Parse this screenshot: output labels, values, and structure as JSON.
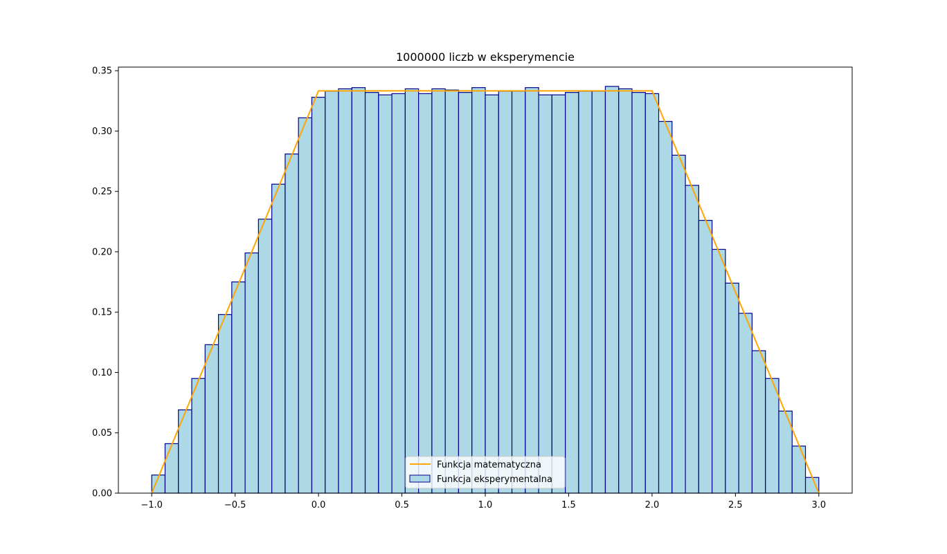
{
  "chart_data": {
    "type": "bar",
    "title": "1000000 liczb w eksperymencie",
    "xlabel": "",
    "ylabel": "",
    "xlim": [
      -1.2,
      3.2
    ],
    "ylim": [
      0,
      0.353
    ],
    "grid": false,
    "legend_position": "bottom-center",
    "x_ticks": [
      "−1.0",
      "−0.5",
      "0.0",
      "0.5",
      "1.0",
      "1.5",
      "2.0",
      "2.5",
      "3.0"
    ],
    "x_tick_values": [
      -1.0,
      -0.5,
      0.0,
      0.5,
      1.0,
      1.5,
      2.0,
      2.5,
      3.0
    ],
    "y_ticks": [
      "0.00",
      "0.05",
      "0.10",
      "0.15",
      "0.20",
      "0.25",
      "0.30",
      "0.35"
    ],
    "y_tick_values": [
      0,
      0.05,
      0.1,
      0.15,
      0.2,
      0.25,
      0.3,
      0.35
    ],
    "series": [
      {
        "name": "Funkcja eksperymentalna",
        "kind": "histogram",
        "bin_start": -1.0,
        "bin_width": 0.08,
        "values": [
          0.015,
          0.041,
          0.069,
          0.095,
          0.123,
          0.148,
          0.175,
          0.199,
          0.227,
          0.256,
          0.281,
          0.311,
          0.328,
          0.333,
          0.335,
          0.336,
          0.332,
          0.33,
          0.331,
          0.335,
          0.331,
          0.335,
          0.334,
          0.332,
          0.336,
          0.33,
          0.333,
          0.333,
          0.336,
          0.33,
          0.33,
          0.332,
          0.333,
          0.333,
          0.337,
          0.335,
          0.332,
          0.331,
          0.308,
          0.28,
          0.255,
          0.226,
          0.202,
          0.174,
          0.149,
          0.118,
          0.095,
          0.068,
          0.039,
          0.013
        ],
        "fill_color": "#add8e6",
        "edge_color": "#00008b"
      },
      {
        "name": "Funkcja matematyczna",
        "kind": "line",
        "x": [
          -1.0,
          0.0,
          2.0,
          3.0
        ],
        "y": [
          0.0,
          0.3333,
          0.3333,
          0.0
        ],
        "color": "#ffa500"
      }
    ]
  }
}
